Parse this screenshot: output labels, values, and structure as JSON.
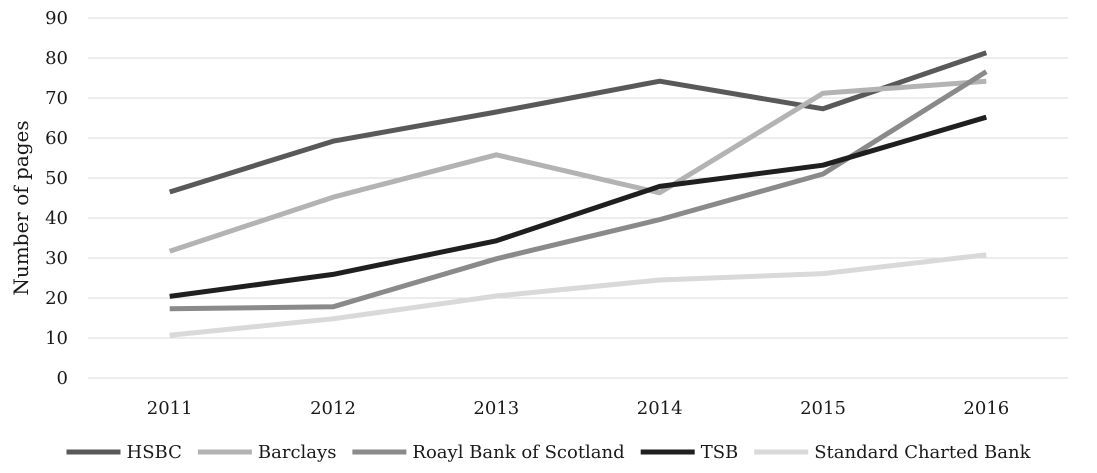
{
  "chart_data": {
    "type": "line",
    "title": "",
    "xlabel": "",
    "ylabel": "Number of pages",
    "categories": [
      "2011",
      "2012",
      "2013",
      "2014",
      "2015",
      "2016"
    ],
    "ylim": [
      0,
      90
    ],
    "yticks": [
      "0",
      "10",
      "20",
      "30",
      "40",
      "50",
      "60",
      "70",
      "80",
      "90"
    ],
    "grid": true,
    "legend_position": "bottom",
    "series": [
      {
        "name": "HSBC",
        "color": "#595959",
        "values": [
          46.5,
          59.2,
          66.5,
          74.2,
          67.3,
          81.3
        ]
      },
      {
        "name": "Barclays",
        "color": "#b3b3b3",
        "values": [
          31.7,
          45.2,
          55.8,
          46.3,
          71.2,
          74.2
        ]
      },
      {
        "name": "Roayl Bank of Scotland",
        "color": "#8a8a8a",
        "values": [
          17.3,
          17.8,
          29.8,
          39.6,
          51.0,
          76.6
        ]
      },
      {
        "name": "TSB",
        "color": "#1f1f1f",
        "values": [
          20.4,
          25.9,
          34.3,
          47.9,
          53.2,
          65.2
        ]
      },
      {
        "name": "Standard Charted Bank",
        "color": "#d9d9d9",
        "values": [
          10.7,
          14.8,
          20.5,
          24.5,
          26.1,
          30.8
        ]
      }
    ]
  }
}
